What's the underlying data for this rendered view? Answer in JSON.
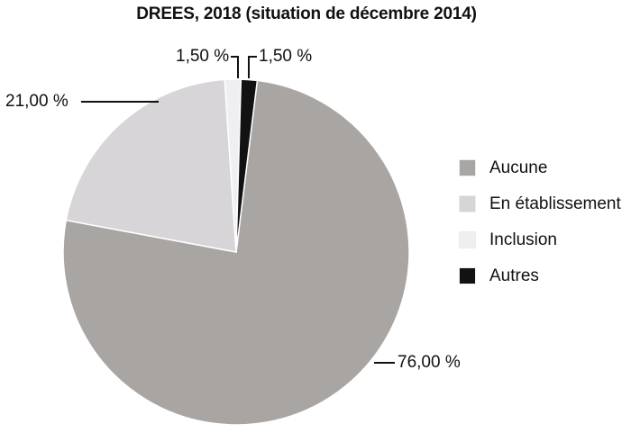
{
  "chart_data": {
    "type": "pie",
    "title": "DREES, 2018 (situation de décembre 2014)",
    "categories": [
      "Aucune",
      "En établissement",
      "Inclusion",
      "Autres"
    ],
    "values": [
      76.0,
      21.0,
      1.5,
      1.5
    ],
    "unit": "%",
    "colors": [
      "#a8a5a3",
      "#d7d5d8",
      "#efeef0",
      "#121212"
    ],
    "slice_border_color": "#ffffff",
    "legend_position": "right",
    "callouts": [
      {
        "slice": "Aucune",
        "text": "76,00 %"
      },
      {
        "slice": "En établissement",
        "text": "21,00 %"
      },
      {
        "slice": "Inclusion",
        "text": "1,50 %"
      },
      {
        "slice": "Autres",
        "text": "1,50 %"
      }
    ]
  }
}
